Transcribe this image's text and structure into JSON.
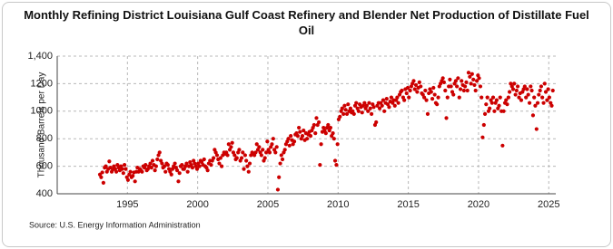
{
  "chart_data": {
    "type": "scatter",
    "title": "Monthly Refining District Louisiana Gulf Coast Refinery and Blender Net Production of Distillate Fuel Oil",
    "y_label": "Thousand Barrels per Day",
    "source": "Source: U.S. Energy Information Administration",
    "color": "#cc0000",
    "grid": true,
    "xlim": [
      1990,
      2025.5
    ],
    "ylim": [
      400,
      1400
    ],
    "xticks": [
      1995,
      2000,
      2005,
      2010,
      2015,
      2020,
      2025
    ],
    "yticks": [
      400,
      600,
      800,
      1000,
      1200,
      {
        "value": 1400,
        "label": "1,400"
      }
    ],
    "x": [
      1993.04,
      1993.13,
      1993.21,
      1993.29,
      1993.38,
      1993.46,
      1993.54,
      1993.63,
      1993.71,
      1993.79,
      1993.88,
      1993.96,
      1994.04,
      1994.13,
      1994.21,
      1994.29,
      1994.38,
      1994.46,
      1994.54,
      1994.63,
      1994.71,
      1994.79,
      1994.88,
      1994.96,
      1995.04,
      1995.13,
      1995.21,
      1995.29,
      1995.38,
      1995.46,
      1995.54,
      1995.63,
      1995.71,
      1995.79,
      1995.88,
      1995.96,
      1996.04,
      1996.13,
      1996.21,
      1996.29,
      1996.38,
      1996.46,
      1996.54,
      1996.63,
      1996.71,
      1996.79,
      1996.88,
      1996.96,
      1997.04,
      1997.13,
      1997.21,
      1997.29,
      1997.38,
      1997.46,
      1997.54,
      1997.63,
      1997.71,
      1997.79,
      1997.88,
      1997.96,
      1998.04,
      1998.13,
      1998.21,
      1998.29,
      1998.38,
      1998.46,
      1998.54,
      1998.63,
      1998.71,
      1998.79,
      1998.88,
      1998.96,
      1999.04,
      1999.13,
      1999.21,
      1999.29,
      1999.38,
      1999.46,
      1999.54,
      1999.63,
      1999.71,
      1999.79,
      1999.88,
      1999.96,
      2000.04,
      2000.13,
      2000.21,
      2000.29,
      2000.38,
      2000.46,
      2000.54,
      2000.63,
      2000.71,
      2000.79,
      2000.88,
      2000.96,
      2001.04,
      2001.13,
      2001.21,
      2001.29,
      2001.38,
      2001.46,
      2001.54,
      2001.63,
      2001.71,
      2001.79,
      2001.88,
      2001.96,
      2002.04,
      2002.13,
      2002.21,
      2002.29,
      2002.38,
      2002.46,
      2002.54,
      2002.63,
      2002.71,
      2002.79,
      2002.88,
      2002.96,
      2003.04,
      2003.13,
      2003.21,
      2003.29,
      2003.38,
      2003.46,
      2003.54,
      2003.63,
      2003.71,
      2003.79,
      2003.88,
      2003.96,
      2004.04,
      2004.13,
      2004.21,
      2004.29,
      2004.38,
      2004.46,
      2004.54,
      2004.63,
      2004.71,
      2004.79,
      2004.88,
      2004.96,
      2005.04,
      2005.13,
      2005.21,
      2005.29,
      2005.38,
      2005.46,
      2005.54,
      2005.63,
      2005.71,
      2005.79,
      2005.88,
      2005.96,
      2006.04,
      2006.13,
      2006.21,
      2006.29,
      2006.38,
      2006.46,
      2006.54,
      2006.63,
      2006.71,
      2006.79,
      2006.88,
      2006.96,
      2007.04,
      2007.13,
      2007.21,
      2007.29,
      2007.38,
      2007.46,
      2007.54,
      2007.63,
      2007.71,
      2007.79,
      2007.88,
      2007.96,
      2008.04,
      2008.13,
      2008.21,
      2008.29,
      2008.38,
      2008.46,
      2008.54,
      2008.63,
      2008.71,
      2008.79,
      2008.88,
      2008.96,
      2009.04,
      2009.13,
      2009.21,
      2009.29,
      2009.38,
      2009.46,
      2009.54,
      2009.63,
      2009.71,
      2009.79,
      2009.88,
      2009.96,
      2010.04,
      2010.13,
      2010.21,
      2010.29,
      2010.38,
      2010.46,
      2010.54,
      2010.63,
      2010.71,
      2010.79,
      2010.88,
      2010.96,
      2011.04,
      2011.13,
      2011.21,
      2011.29,
      2011.38,
      2011.46,
      2011.54,
      2011.63,
      2011.71,
      2011.79,
      2011.88,
      2011.96,
      2012.04,
      2012.13,
      2012.21,
      2012.29,
      2012.38,
      2012.46,
      2012.54,
      2012.63,
      2012.71,
      2012.79,
      2012.88,
      2012.96,
      2013.04,
      2013.13,
      2013.21,
      2013.29,
      2013.38,
      2013.46,
      2013.54,
      2013.63,
      2013.71,
      2013.79,
      2013.88,
      2013.96,
      2014.04,
      2014.13,
      2014.21,
      2014.29,
      2014.38,
      2014.46,
      2014.54,
      2014.63,
      2014.71,
      2014.79,
      2014.88,
      2014.96,
      2015.04,
      2015.13,
      2015.21,
      2015.29,
      2015.38,
      2015.46,
      2015.54,
      2015.63,
      2015.71,
      2015.79,
      2015.88,
      2015.96,
      2016.04,
      2016.13,
      2016.21,
      2016.29,
      2016.38,
      2016.46,
      2016.54,
      2016.63,
      2016.71,
      2016.79,
      2016.88,
      2016.96,
      2017.04,
      2017.13,
      2017.21,
      2017.29,
      2017.38,
      2017.46,
      2017.54,
      2017.63,
      2017.71,
      2017.79,
      2017.88,
      2017.96,
      2018.04,
      2018.13,
      2018.21,
      2018.29,
      2018.38,
      2018.46,
      2018.54,
      2018.63,
      2018.71,
      2018.79,
      2018.88,
      2018.96,
      2019.04,
      2019.13,
      2019.21,
      2019.29,
      2019.38,
      2019.46,
      2019.54,
      2019.63,
      2019.71,
      2019.79,
      2019.88,
      2019.96,
      2020.04,
      2020.13,
      2020.21,
      2020.29,
      2020.38,
      2020.46,
      2020.54,
      2020.63,
      2020.71,
      2020.79,
      2020.88,
      2020.96,
      2021.04,
      2021.13,
      2021.21,
      2021.29,
      2021.38,
      2021.46,
      2021.54,
      2021.63,
      2021.71,
      2021.79,
      2021.88,
      2021.96,
      2022.04,
      2022.13,
      2022.21,
      2022.29,
      2022.38,
      2022.46,
      2022.54,
      2022.63,
      2022.71,
      2022.79,
      2022.88,
      2022.96,
      2023.04,
      2023.13,
      2023.21,
      2023.29,
      2023.38,
      2023.46,
      2023.54,
      2023.63,
      2023.71,
      2023.79,
      2023.88,
      2023.96,
      2024.04,
      2024.13,
      2024.21,
      2024.29,
      2024.38,
      2024.46,
      2024.54,
      2024.63,
      2024.71,
      2024.79,
      2024.88,
      2024.96,
      2025.04,
      2025.13,
      2025.21,
      2025.29
    ],
    "values": [
      540,
      520,
      555,
      480,
      590,
      600,
      560,
      580,
      635,
      590,
      560,
      575,
      600,
      580,
      560,
      610,
      590,
      570,
      600,
      580,
      550,
      610,
      580,
      520,
      500,
      540,
      560,
      520,
      530,
      555,
      490,
      560,
      590,
      560,
      580,
      570,
      560,
      600,
      590,
      610,
      570,
      580,
      600,
      620,
      590,
      640,
      610,
      570,
      600,
      650,
      680,
      700,
      640,
      620,
      590,
      600,
      560,
      620,
      610,
      580,
      560,
      540,
      580,
      600,
      620,
      590,
      570,
      490,
      550,
      600,
      610,
      580,
      580,
      600,
      620,
      560,
      600,
      630,
      610,
      590,
      640,
      620,
      600,
      580,
      620,
      600,
      640,
      630,
      610,
      650,
      600,
      590,
      570,
      620,
      640,
      610,
      640,
      660,
      720,
      700,
      680,
      650,
      620,
      660,
      600,
      680,
      700,
      690,
      700,
      680,
      760,
      720,
      740,
      770,
      700,
      680,
      650,
      660,
      700,
      720,
      640,
      660,
      700,
      580,
      680,
      640,
      600,
      560,
      620,
      680,
      700,
      690,
      680,
      700,
      760,
      720,
      740,
      700,
      680,
      720,
      640,
      660,
      700,
      780,
      720,
      700,
      740,
      760,
      800,
      720,
      700,
      740,
      430,
      520,
      620,
      680,
      650,
      700,
      720,
      760,
      780,
      800,
      750,
      820,
      790,
      760,
      780,
      830,
      840,
      820,
      880,
      850,
      800,
      820,
      860,
      790,
      840,
      800,
      830,
      850,
      820,
      860,
      880,
      900,
      840,
      950,
      900,
      920,
      610,
      760,
      850,
      880,
      860,
      840,
      880,
      900,
      860,
      880,
      820,
      840,
      800,
      640,
      610,
      760,
      940,
      960,
      1000,
      1020,
      980,
      1040,
      1010,
      980,
      1050,
      1000,
      1020,
      990,
      1000,
      980,
      1040,
      1060,
      1020,
      1000,
      1050,
      1030,
      990,
      1040,
      1060,
      1020,
      1040,
      1000,
      1060,
      1020,
      980,
      1050,
      1030,
      900,
      920,
      1040,
      1060,
      1020,
      1060,
      1040,
      1080,
      1000,
      1060,
      1090,
      1050,
      1030,
      1070,
      1100,
      1060,
      1080,
      1040,
      1080,
      1100,
      1060,
      1120,
      1140,
      1150,
      1100,
      1080,
      1160,
      1130,
      1170,
      1100,
      1150,
      1180,
      1200,
      1220,
      1160,
      1190,
      1140,
      1170,
      1210,
      1180,
      1130,
      1120,
      1100,
      1150,
      1080,
      980,
      1130,
      1160,
      1140,
      1090,
      1170,
      1120,
      1060,
      1050,
      1100,
      1180,
      1200,
      1220,
      1240,
      1210,
      1150,
      950,
      1100,
      1180,
      1230,
      1180,
      1140,
      1120,
      1200,
      1220,
      1180,
      1240,
      1100,
      1160,
      1220,
      1190,
      1150,
      1180,
      1210,
      1150,
      1280,
      1250,
      1200,
      1270,
      1230,
      1190,
      1150,
      1220,
      1260,
      1240,
      1180,
      1100,
      810,
      900,
      980,
      1050,
      1100,
      1000,
      1020,
      1080,
      1060,
      1100,
      1000,
      1060,
      1080,
      1020,
      1040,
      1100,
      1000,
      750,
      1000,
      1060,
      1080,
      1050,
      1100,
      1140,
      1200,
      1180,
      1160,
      1200,
      1120,
      1150,
      1180,
      1100,
      1130,
      1080,
      1140,
      1160,
      1180,
      1100,
      1160,
      1120,
      1060,
      1180,
      1150,
      970,
      1100,
      1040,
      870,
      1060,
      1120,
      1150,
      1180,
      1100,
      1060,
      1200,
      1140,
      1080,
      1160,
      1100,
      1060,
      1040,
      1150
    ]
  }
}
